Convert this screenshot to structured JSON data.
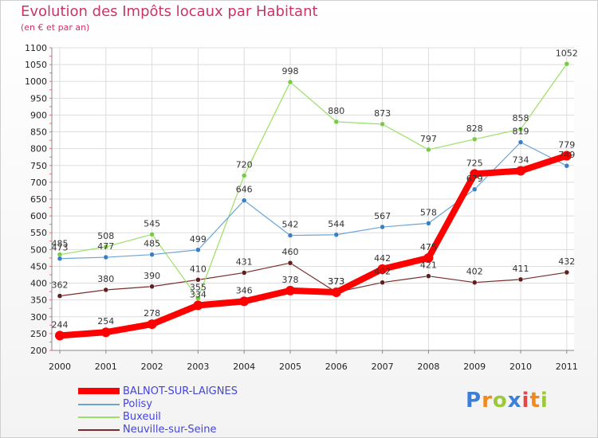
{
  "title": "Evolution des Impôts locaux par Habitant",
  "subtitle": "(en € et par an)",
  "logo": {
    "text": "Proxiti",
    "letters": [
      "P",
      "r",
      "o",
      "x",
      "i",
      "t",
      "i"
    ],
    "colors": [
      "#3d7fd6",
      "#f08a1c",
      "#9bc93a",
      "#3d7fd6",
      "#e24a4a",
      "#f08a1c",
      "#9bc93a"
    ]
  },
  "chart_data": {
    "type": "line",
    "categories": [
      "2000",
      "2001",
      "2002",
      "2003",
      "2004",
      "2005",
      "2006",
      "2007",
      "2008",
      "2009",
      "2010",
      "2011"
    ],
    "ylim": [
      200,
      1100
    ],
    "yticks": [
      200,
      250,
      300,
      350,
      400,
      450,
      500,
      550,
      600,
      650,
      700,
      750,
      800,
      850,
      900,
      950,
      1000,
      1050,
      1100
    ],
    "series": [
      {
        "name": "Neuville-sur-Seine",
        "color": "#7a2b2b",
        "marker": "#5e1f1f",
        "width": 1.2,
        "radius": 3,
        "values": [
          362,
          380,
          390,
          410,
          431,
          460,
          373,
          402,
          421,
          402,
          411,
          432
        ]
      },
      {
        "name": "Buxeuil",
        "color": "#99e066",
        "marker": "#77cc44",
        "width": 1.2,
        "radius": 3,
        "values": [
          485,
          508,
          545,
          355,
          720,
          998,
          880,
          873,
          797,
          828,
          858,
          1052
        ]
      },
      {
        "name": "Polisy",
        "color": "#6ba3d6",
        "marker": "#3a7fc2",
        "width": 1.2,
        "radius": 3,
        "values": [
          473,
          477,
          485,
          499,
          646,
          542,
          544,
          567,
          578,
          679,
          819,
          749
        ]
      },
      {
        "name": "BALNOT-SUR-LAIGNES",
        "color": "#ff0000",
        "marker": "#ff0000",
        "width": 8,
        "radius": 6,
        "values": [
          244,
          254,
          278,
          334,
          346,
          378,
          373,
          442,
          475,
          725,
          734,
          779
        ],
        "labels": [
          "244",
          "254",
          "278",
          "334",
          "346",
          "378",
          "373",
          "442",
          "475",
          "725",
          "734",
          "779"
        ]
      }
    ],
    "legend": [
      {
        "name": "BALNOT-SUR-LAIGNES",
        "color": "#ff0000",
        "text_color": "#4444dd"
      },
      {
        "name": "Polisy",
        "color": "#6ba3d6",
        "text_color": "#4444dd"
      },
      {
        "name": "Buxeuil",
        "color": "#99e066",
        "text_color": "#4444dd"
      },
      {
        "name": "Neuville-sur-Seine",
        "color": "#7a2b2b",
        "text_color": "#4444dd"
      }
    ]
  }
}
